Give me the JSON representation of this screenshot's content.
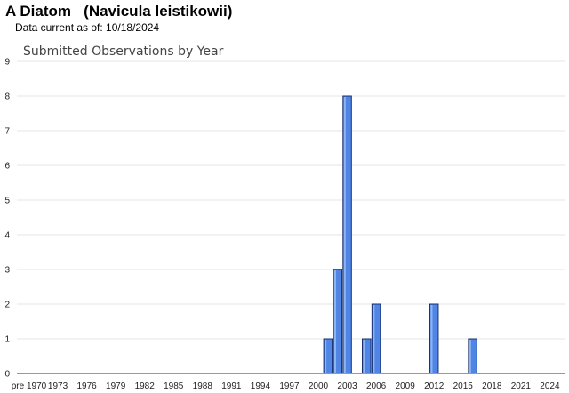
{
  "header": {
    "title": "A Diatom   (Navicula leistikowii)",
    "subtitle": "Data current as of: 10/18/2024"
  },
  "colors": {
    "bar_fill": "#4f86e6",
    "bar_stroke": "#1a2f6b",
    "grid": "#e4e4e4"
  },
  "chart_data": {
    "type": "bar",
    "title": "Submitted Observations by Year",
    "xlabel": "",
    "ylabel": "",
    "ylim": [
      0,
      9
    ],
    "y_ticks": [
      0,
      1,
      2,
      3,
      4,
      5,
      6,
      7,
      8,
      9
    ],
    "grid": true,
    "legend": "none",
    "x_tick_labels": [
      "pre 1970",
      "1973",
      "1976",
      "1979",
      "1982",
      "1985",
      "1988",
      "1991",
      "1994",
      "1997",
      "2000",
      "2003",
      "2006",
      "2009",
      "2012",
      "2015",
      "2018",
      "2021",
      "2024"
    ],
    "bars": [
      {
        "year": 2001,
        "value": 1
      },
      {
        "year": 2002,
        "value": 3
      },
      {
        "year": 2003,
        "value": 8
      },
      {
        "year": 2005,
        "value": 1
      },
      {
        "year": 2006,
        "value": 2
      },
      {
        "year": 2012,
        "value": 2
      },
      {
        "year": 2016,
        "value": 1
      }
    ]
  }
}
